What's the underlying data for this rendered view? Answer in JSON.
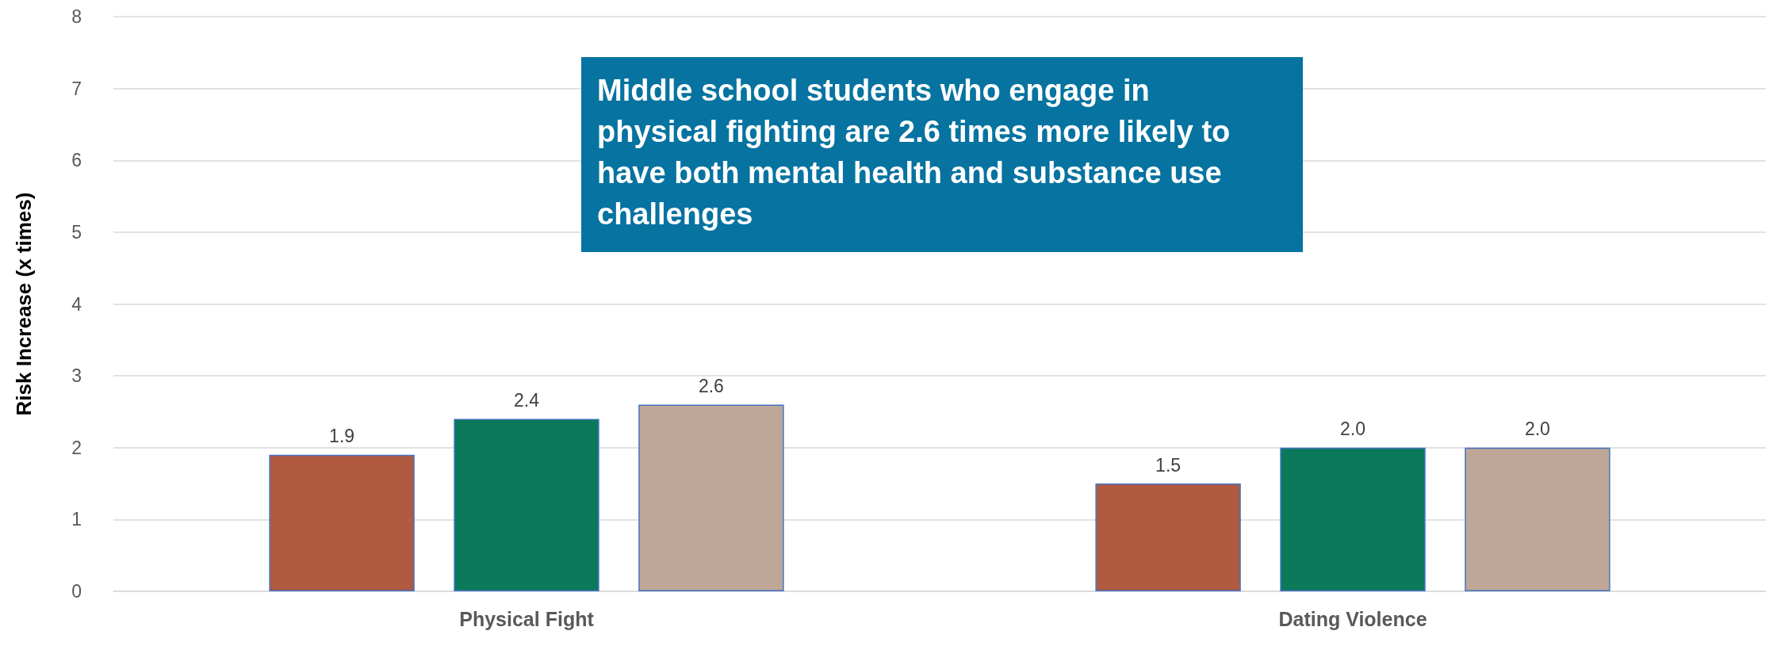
{
  "chart_data": {
    "type": "bar",
    "ylabel": "Risk Increase (x times)",
    "categories": [
      "Physical Fight",
      "Dating Violence"
    ],
    "series": [
      {
        "color": "#b05a40",
        "values": [
          1.9,
          1.5
        ],
        "value_labels": [
          "1.9",
          "1.5"
        ]
      },
      {
        "color": "#0a7a5a",
        "values": [
          2.4,
          2.0
        ],
        "value_labels": [
          "2.4",
          "2.0"
        ]
      },
      {
        "color": "#bfa797",
        "values": [
          2.6,
          2.0
        ],
        "value_labels": [
          "2.6",
          "2.0"
        ]
      }
    ],
    "ylim": [
      0,
      8
    ],
    "yticks": [
      0,
      1,
      2,
      3,
      4,
      5,
      6,
      7,
      8
    ],
    "grid": "y",
    "annotations": [
      "Middle school students who engage in physical fighting are 2.6 times more likely to have both mental health and substance use challenges"
    ]
  }
}
